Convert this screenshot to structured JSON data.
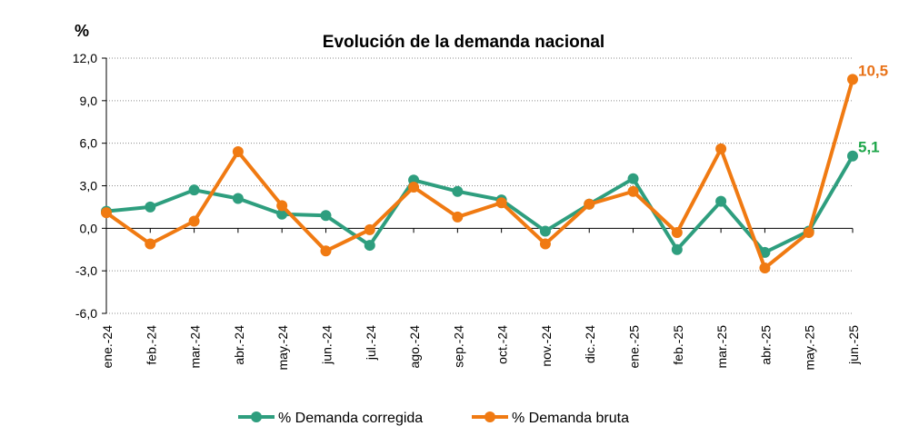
{
  "chart_data": {
    "type": "line",
    "title": "Evolución de la demanda nacional",
    "unit_label": "%",
    "categories": [
      "ene.-24",
      "feb.-24",
      "mar.-24",
      "abr.-24",
      "may.-24",
      "jun.-24",
      "jul.-24",
      "ago.-24",
      "sep.-24",
      "oct.-24",
      "nov.-24",
      "dic.-24",
      "ene.-25",
      "feb.-25",
      "mar.-25",
      "abr.-25",
      "may.-25",
      "jun.-25"
    ],
    "ylim": [
      -6.0,
      12.0
    ],
    "yticks": [
      "12,0",
      "9,0",
      "6,0",
      "3,0",
      "0,0",
      "-3,0",
      "-6,0"
    ],
    "grid": "horizontal dotted",
    "legend": "bottom",
    "series": [
      {
        "name": "% Demanda corregida",
        "color": "#2E9E7E",
        "values": [
          1.2,
          1.5,
          2.7,
          2.1,
          1.0,
          0.9,
          -1.2,
          3.4,
          2.6,
          2.0,
          -0.2,
          1.7,
          3.5,
          -1.5,
          1.9,
          -1.7,
          -0.2,
          5.1
        ],
        "end_label": "5,1",
        "end_label_color": "#1EA64A"
      },
      {
        "name": "% Demanda bruta",
        "color": "#F07A12",
        "values": [
          1.1,
          -1.1,
          0.5,
          5.4,
          1.6,
          -1.6,
          -0.1,
          2.9,
          0.8,
          1.8,
          -1.1,
          1.7,
          2.6,
          -0.3,
          5.6,
          -2.8,
          -0.3,
          10.5
        ],
        "end_label": "10,5",
        "end_label_color": "#E8731A"
      }
    ]
  }
}
